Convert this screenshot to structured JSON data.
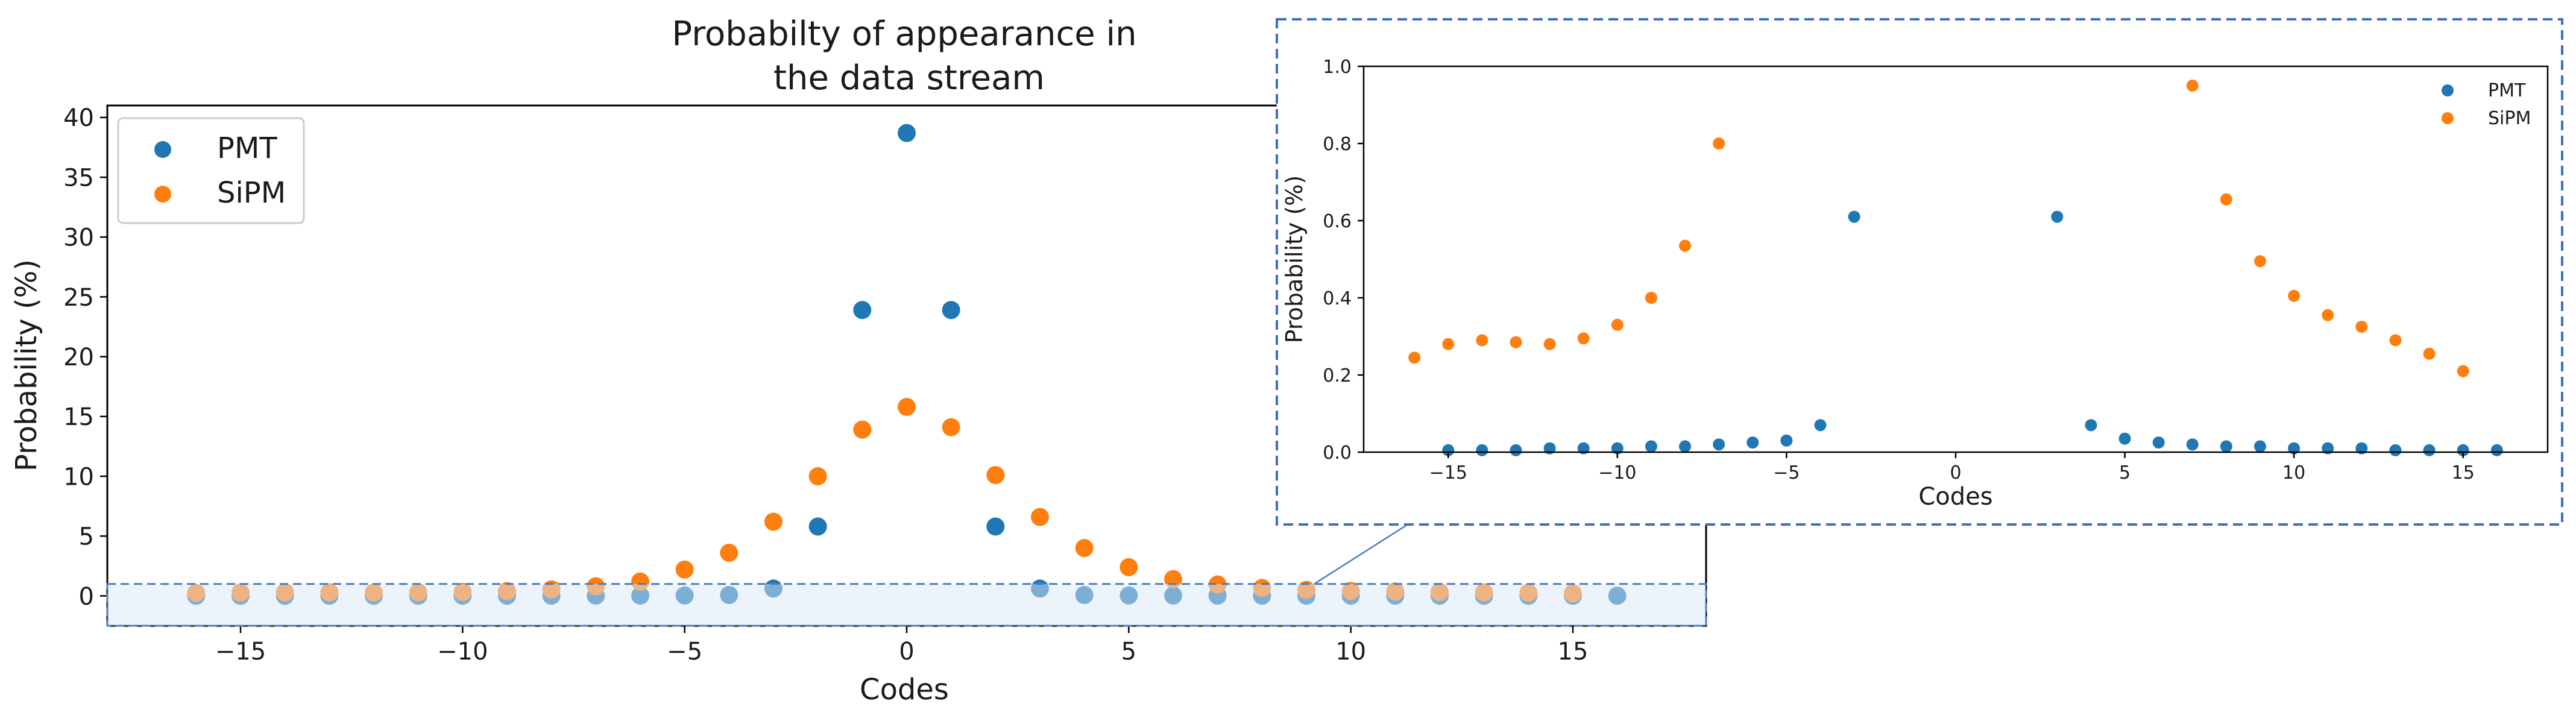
{
  "chart_data": [
    {
      "type": "scatter",
      "title_lines": [
        "Probabilty of appearance in",
        "the data stream"
      ],
      "xlabel": "Codes",
      "ylabel": "Probability (%)",
      "xlim": [
        -18,
        18
      ],
      "ylim": [
        -2.5,
        41
      ],
      "xticks": [
        -15,
        -10,
        -5,
        0,
        5,
        10,
        15
      ],
      "yticks": [
        0,
        5,
        10,
        15,
        20,
        25,
        30,
        35,
        40
      ],
      "legend_position": "top-left",
      "zoom_region": {
        "x": [
          -18,
          18
        ],
        "y": [
          -2.5,
          1.0
        ]
      },
      "series": [
        {
          "name": "PMT",
          "color": "#1f77b4",
          "x": [
            -16,
            -15,
            -14,
            -13,
            -12,
            -11,
            -10,
            -9,
            -8,
            -7,
            -6,
            -5,
            -4,
            -3,
            -2,
            -1,
            0,
            1,
            2,
            3,
            4,
            5,
            6,
            7,
            8,
            9,
            10,
            11,
            12,
            13,
            14,
            15,
            16
          ],
          "y": [
            0.005,
            0.005,
            0.005,
            0.005,
            0.01,
            0.01,
            0.01,
            0.015,
            0.015,
            0.02,
            0.025,
            0.03,
            0.07,
            0.61,
            5.8,
            23.9,
            38.7,
            23.9,
            5.8,
            0.61,
            0.07,
            0.035,
            0.025,
            0.02,
            0.015,
            0.015,
            0.01,
            0.01,
            0.01,
            0.005,
            0.005,
            0.005,
            0.005
          ]
        },
        {
          "name": "SiPM",
          "color": "#ff7f0e",
          "x": [
            -16,
            -15,
            -14,
            -13,
            -12,
            -11,
            -10,
            -9,
            -8,
            -7,
            -6,
            -5,
            -4,
            -3,
            -2,
            -1,
            0,
            1,
            2,
            3,
            4,
            5,
            6,
            7,
            8,
            9,
            10,
            11,
            12,
            13,
            14,
            15
          ],
          "y": [
            0.25,
            0.28,
            0.29,
            0.29,
            0.28,
            0.3,
            0.33,
            0.4,
            0.54,
            0.8,
            1.2,
            2.2,
            3.6,
            6.2,
            10.0,
            13.9,
            15.8,
            14.1,
            10.1,
            6.6,
            4.0,
            2.4,
            1.4,
            0.95,
            0.66,
            0.5,
            0.41,
            0.36,
            0.33,
            0.29,
            0.26,
            0.21
          ]
        }
      ]
    },
    {
      "type": "scatter",
      "xlabel": "Codes",
      "ylabel": "Probability (%)",
      "xlim": [
        -17.5,
        17.5
      ],
      "ylim": [
        0,
        1.0
      ],
      "xticks": [
        -15,
        -10,
        -5,
        0,
        5,
        10,
        15
      ],
      "yticks": [
        0.0,
        0.2,
        0.4,
        0.6,
        0.8,
        1.0
      ],
      "yticklabels": [
        "0.0",
        "0.2",
        "0.4",
        "0.6",
        "0.8",
        "1.0"
      ],
      "legend_position": "top-right",
      "series": [
        {
          "name": "PMT",
          "color": "#1f77b4",
          "x": [
            -15,
            -14,
            -13,
            -12,
            -11,
            -10,
            -9,
            -8,
            -7,
            -6,
            -5,
            -4,
            -3,
            3,
            4,
            5,
            6,
            7,
            8,
            9,
            10,
            11,
            12,
            13,
            14,
            15,
            16
          ],
          "y": [
            0.005,
            0.005,
            0.005,
            0.01,
            0.01,
            0.01,
            0.015,
            0.015,
            0.02,
            0.025,
            0.03,
            0.07,
            0.61,
            0.61,
            0.07,
            0.035,
            0.025,
            0.02,
            0.015,
            0.015,
            0.01,
            0.01,
            0.01,
            0.005,
            0.005,
            0.005,
            0.005
          ]
        },
        {
          "name": "SiPM",
          "color": "#ff7f0e",
          "x": [
            -16,
            -15,
            -14,
            -13,
            -12,
            -11,
            -10,
            -9,
            -8,
            -7,
            7,
            8,
            9,
            10,
            11,
            12,
            13,
            14,
            15
          ],
          "y": [
            0.245,
            0.28,
            0.29,
            0.285,
            0.28,
            0.295,
            0.33,
            0.4,
            0.535,
            0.8,
            0.95,
            0.655,
            0.495,
            0.405,
            0.355,
            0.325,
            0.29,
            0.255,
            0.21
          ]
        }
      ]
    }
  ]
}
